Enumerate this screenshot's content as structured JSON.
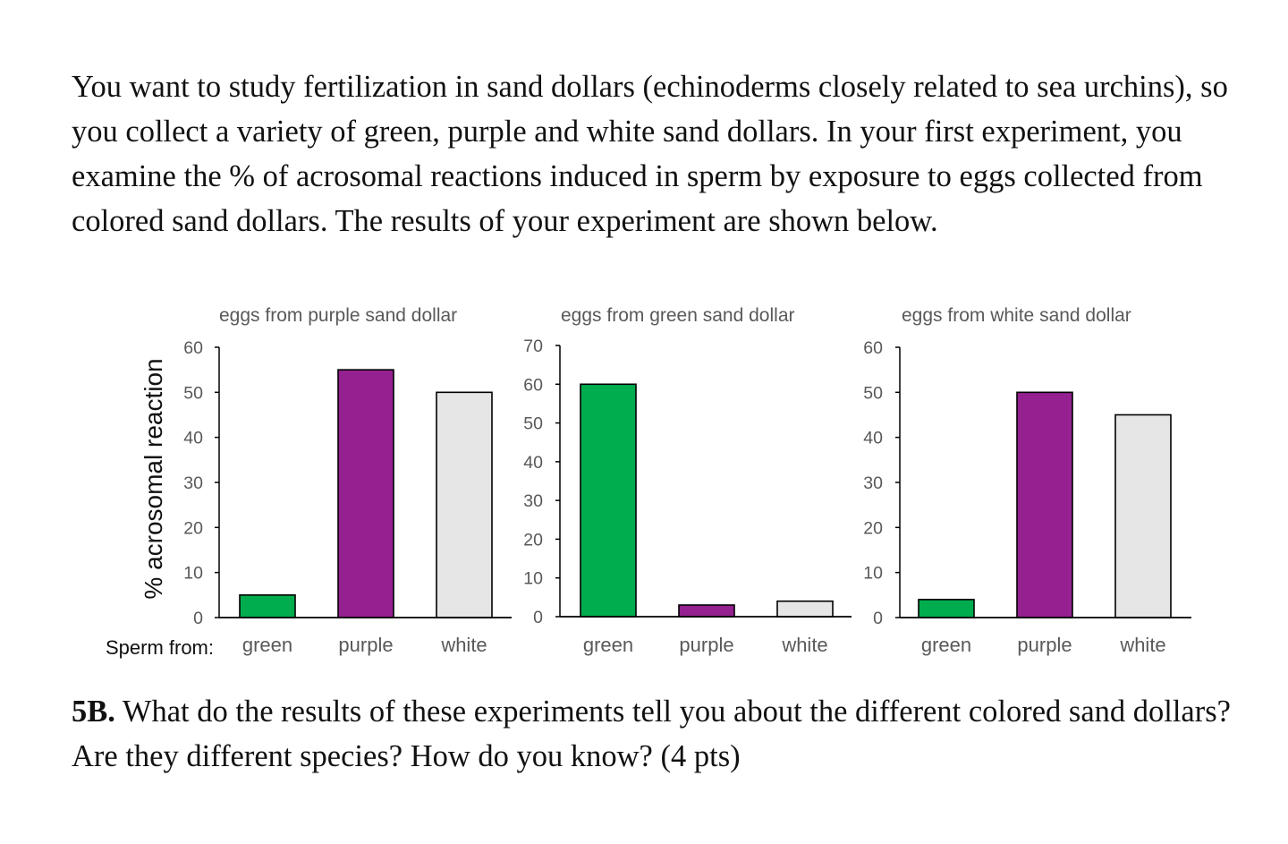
{
  "intro_text": "You want to study fertilization in sand dollars (echinoderms closely related to sea urchins), so you collect a variety of green, purple and white sand dollars. In your first experiment, you examine the % of acrosomal reactions induced in sperm by exposure to eggs collected from colored sand dollars. The results of your experiment are shown below.",
  "question": {
    "number": "5B.",
    "text": "What do the results of these experiments tell you about the different colored sand dollars? Are they different species? How do you know? (4 pts)"
  },
  "colors": {
    "green": "#00ad4e",
    "purple": "#952191",
    "white": "#e6e6e6"
  },
  "chart_data": [
    {
      "type": "bar",
      "title": "eggs from purple sand dollar",
      "ylabel": "% acrosomal reaction",
      "xlabel": "Sperm from:",
      "categories": [
        "green",
        "purple",
        "white"
      ],
      "values": [
        5,
        55,
        50
      ],
      "ylim": [
        0,
        60
      ],
      "yticks": [
        0,
        10,
        20,
        30,
        40,
        50,
        60
      ]
    },
    {
      "type": "bar",
      "title": "eggs from green sand dollar",
      "ylabel": "",
      "xlabel": "",
      "categories": [
        "green",
        "purple",
        "white"
      ],
      "values": [
        60,
        3,
        4
      ],
      "ylim": [
        0,
        70
      ],
      "yticks": [
        0,
        10,
        20,
        30,
        40,
        50,
        60,
        70
      ]
    },
    {
      "type": "bar",
      "title": "eggs from white sand dollar",
      "ylabel": "",
      "xlabel": "",
      "categories": [
        "green",
        "purple",
        "white"
      ],
      "values": [
        4,
        50,
        45
      ],
      "ylim": [
        0,
        60
      ],
      "yticks": [
        0,
        10,
        20,
        30,
        40,
        50,
        60
      ]
    }
  ]
}
